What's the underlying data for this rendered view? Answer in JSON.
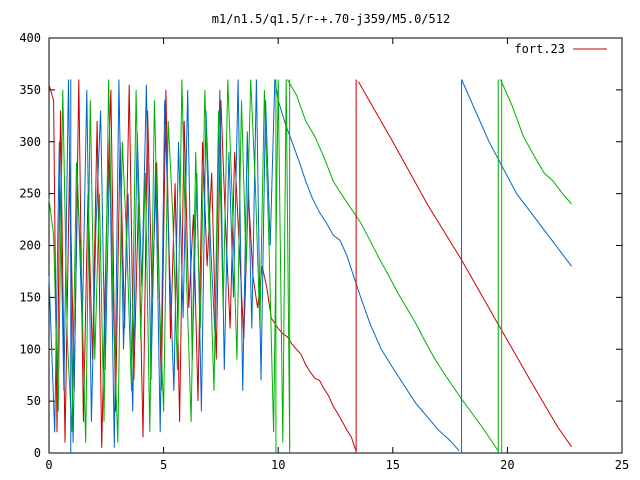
{
  "chart_data": {
    "type": "line",
    "title": "m1/n1.5/q1.5/r-+.70-j359/M5.0/512",
    "xlabel": "",
    "ylabel": "",
    "xlim": [
      0,
      25
    ],
    "ylim": [
      0,
      400
    ],
    "xticks": [
      0,
      5,
      10,
      15,
      20,
      25
    ],
    "yticks": [
      0,
      50,
      100,
      150,
      200,
      250,
      300,
      350,
      400
    ],
    "grid": false,
    "legend_position": "top-right",
    "legend": [
      {
        "label": "fort.23",
        "color": "#cc0000"
      }
    ],
    "series": [
      {
        "color": "#cc0000",
        "segments": [
          [
            [
              0,
              355
            ],
            [
              0.2,
              340
            ],
            [
              0.35,
              20
            ],
            [
              0.5,
              330
            ],
            [
              0.7,
              10
            ],
            [
              0.9,
              280
            ],
            [
              1.1,
              60
            ],
            [
              1.3,
              360
            ],
            [
              1.5,
              30
            ],
            [
              1.7,
              250
            ],
            [
              1.9,
              90
            ],
            [
              2.1,
              320
            ],
            [
              2.3,
              5
            ],
            [
              2.5,
              210
            ],
            [
              2.7,
              350
            ],
            [
              2.9,
              40
            ],
            [
              3.1,
              300
            ],
            [
              3.3,
              120
            ],
            [
              3.5,
              355
            ],
            [
              3.7,
              70
            ],
            [
              3.9,
              240
            ],
            [
              4.1,
              15
            ],
            [
              4.3,
              330
            ],
            [
              4.5,
              150
            ],
            [
              4.7,
              280
            ],
            [
              4.9,
              60
            ],
            [
              5.1,
              350
            ],
            [
              5.3,
              110
            ],
            [
              5.5,
              260
            ],
            [
              5.7,
              30
            ],
            [
              5.9,
              320
            ],
            [
              6.1,
              140
            ],
            [
              6.3,
              230
            ],
            [
              6.5,
              50
            ],
            [
              6.7,
              300
            ],
            [
              6.9,
              180
            ],
            [
              7.1,
              270
            ],
            [
              7.3,
              90
            ],
            [
              7.5,
              340
            ],
            [
              7.7,
              220
            ],
            [
              7.9,
              120
            ],
            [
              8.1,
              290
            ],
            [
              8.3,
              200
            ],
            [
              8.5,
              110
            ],
            [
              8.7,
              250
            ],
            [
              8.9,
              170
            ],
            [
              9.1,
              140
            ],
            [
              9.3,
              180
            ],
            [
              9.5,
              160
            ],
            [
              9.7,
              130
            ]
          ],
          [
            [
              9.7,
              130
            ],
            [
              10.0,
              120
            ],
            [
              10.2,
              115
            ],
            [
              10.4,
              112
            ],
            [
              10.6,
              105
            ],
            [
              10.8,
              100
            ],
            [
              11.0,
              95
            ],
            [
              11.2,
              85
            ],
            [
              11.4,
              78
            ],
            [
              11.6,
              72
            ],
            [
              11.8,
              70
            ],
            [
              12.0,
              62
            ],
            [
              12.2,
              55
            ],
            [
              12.4,
              45
            ],
            [
              12.6,
              38
            ],
            [
              12.8,
              30
            ],
            [
              13.0,
              22
            ],
            [
              13.2,
              15
            ],
            [
              13.3,
              8
            ],
            [
              13.4,
              2
            ]
          ],
          [
            [
              13.5,
              358
            ],
            [
              15.0,
              300
            ],
            [
              16.5,
              240
            ],
            [
              18.0,
              186
            ],
            [
              19.5,
              128
            ],
            [
              21.0,
              70
            ],
            [
              22.2,
              25
            ],
            [
              22.8,
              6
            ]
          ]
        ]
      },
      {
        "color": "#0066cc",
        "segments": [
          [
            [
              0,
              170
            ],
            [
              0.25,
              20
            ],
            [
              0.45,
              300
            ],
            [
              0.65,
              60
            ],
            [
              0.85,
              360
            ],
            [
              1.05,
              10
            ],
            [
              1.25,
              260
            ],
            [
              1.45,
              120
            ],
            [
              1.65,
              350
            ],
            [
              1.85,
              30
            ],
            [
              2.05,
              220
            ],
            [
              2.25,
              330
            ],
            [
              2.45,
              80
            ],
            [
              2.65,
              290
            ],
            [
              2.85,
              5
            ],
            [
              3.05,
              360
            ],
            [
              3.25,
              100
            ],
            [
              3.45,
              250
            ],
            [
              3.65,
              40
            ],
            [
              3.85,
              310
            ],
            [
              4.05,
              160
            ],
            [
              4.25,
              355
            ],
            [
              4.45,
              70
            ],
            [
              4.65,
              280
            ],
            [
              4.85,
              20
            ],
            [
              5.05,
              340
            ],
            [
              5.25,
              190
            ],
            [
              5.45,
              60
            ],
            [
              5.65,
              300
            ],
            [
              5.85,
              130
            ],
            [
              6.05,
              350
            ],
            [
              6.25,
              90
            ],
            [
              6.45,
              270
            ],
            [
              6.65,
              40
            ],
            [
              6.85,
              330
            ],
            [
              7.05,
              200
            ],
            [
              7.25,
              110
            ],
            [
              7.45,
              350
            ],
            [
              7.65,
              80
            ],
            [
              7.85,
              290
            ],
            [
              8.05,
              150
            ],
            [
              8.25,
              360
            ],
            [
              8.45,
              60
            ],
            [
              8.65,
              310
            ],
            [
              8.85,
              120
            ],
            [
              9.05,
              360
            ],
            [
              9.25,
              70
            ],
            [
              9.45,
              340
            ],
            [
              9.65,
              200
            ],
            [
              9.85,
              360
            ]
          ],
          [
            [
              9.85,
              360
            ],
            [
              10.0,
              340
            ],
            [
              10.3,
              318
            ],
            [
              10.6,
              300
            ],
            [
              10.9,
              282
            ],
            [
              11.2,
              262
            ],
            [
              11.5,
              245
            ],
            [
              11.8,
              232
            ],
            [
              12.1,
              222
            ],
            [
              12.4,
              210
            ],
            [
              12.7,
              205
            ],
            [
              13.0,
              190
            ],
            [
              13.3,
              170
            ],
            [
              13.6,
              150
            ],
            [
              14.0,
              125
            ],
            [
              14.5,
              100
            ],
            [
              15.0,
              82
            ],
            [
              15.5,
              65
            ],
            [
              16.0,
              48
            ],
            [
              16.5,
              35
            ],
            [
              17.0,
              22
            ],
            [
              17.5,
              12
            ],
            [
              17.9,
              2
            ]
          ],
          [
            [
              18.0,
              360
            ],
            [
              19.2,
              300
            ],
            [
              20.4,
              250
            ],
            [
              21.6,
              215
            ],
            [
              22.8,
              180
            ]
          ]
        ]
      },
      {
        "color": "#00b000",
        "segments": [
          [
            [
              0,
              245
            ],
            [
              0.2,
              210
            ],
            [
              0.4,
              40
            ],
            [
              0.6,
              350
            ],
            [
              0.8,
              110
            ],
            [
              1.0,
              20
            ],
            [
              1.2,
              280
            ],
            [
              1.4,
              180
            ],
            [
              1.6,
              10
            ],
            [
              1.8,
              340
            ],
            [
              2.0,
              90
            ],
            [
              2.2,
              250
            ],
            [
              2.4,
              30
            ],
            [
              2.6,
              360
            ],
            [
              2.8,
              140
            ],
            [
              3.0,
              10
            ],
            [
              3.2,
              300
            ],
            [
              3.4,
              200
            ],
            [
              3.6,
              60
            ],
            [
              3.8,
              350
            ],
            [
              4.0,
              110
            ],
            [
              4.2,
              270
            ],
            [
              4.4,
              20
            ],
            [
              4.6,
              340
            ],
            [
              4.8,
              160
            ],
            [
              5.0,
              40
            ],
            [
              5.2,
              320
            ],
            [
              5.4,
              230
            ],
            [
              5.6,
              80
            ],
            [
              5.8,
              360
            ],
            [
              6.0,
              170
            ],
            [
              6.2,
              30
            ],
            [
              6.4,
              290
            ],
            [
              6.6,
              120
            ],
            [
              6.8,
              350
            ],
            [
              7.0,
              200
            ],
            [
              7.2,
              60
            ],
            [
              7.4,
              330
            ],
            [
              7.6,
              140
            ],
            [
              7.8,
              360
            ],
            [
              8.0,
              240
            ],
            [
              8.2,
              90
            ],
            [
              8.4,
              340
            ],
            [
              8.6,
              180
            ],
            [
              8.8,
              360
            ],
            [
              9.0,
              260
            ],
            [
              9.2,
              120
            ],
            [
              9.4,
              350
            ],
            [
              9.6,
              200
            ],
            [
              9.8,
              20
            ],
            [
              10.0,
              360
            ],
            [
              10.2,
              10
            ],
            [
              10.35,
              360
            ],
            [
              10.5,
              5
            ]
          ],
          [
            [
              10.4,
              360
            ],
            [
              10.8,
              345
            ],
            [
              11.2,
              320
            ],
            [
              11.6,
              305
            ],
            [
              12.0,
              285
            ],
            [
              12.4,
              262
            ],
            [
              12.8,
              248
            ],
            [
              13.2,
              235
            ],
            [
              13.6,
              222
            ],
            [
              14.0,
              205
            ],
            [
              14.4,
              188
            ],
            [
              14.8,
              172
            ],
            [
              15.2,
              155
            ],
            [
              15.6,
              140
            ],
            [
              16.0,
              125
            ],
            [
              16.4,
              108
            ],
            [
              16.8,
              92
            ],
            [
              17.2,
              78
            ],
            [
              17.6,
              65
            ],
            [
              18.0,
              52
            ],
            [
              18.4,
              40
            ],
            [
              18.8,
              28
            ],
            [
              19.2,
              15
            ],
            [
              19.6,
              2
            ]
          ],
          [
            [
              19.7,
              360
            ],
            [
              20.2,
              335
            ],
            [
              20.7,
              305
            ],
            [
              21.2,
              285
            ],
            [
              21.6,
              270
            ],
            [
              22.0,
              262
            ],
            [
              22.4,
              250
            ],
            [
              22.8,
              240
            ]
          ]
        ]
      }
    ],
    "vertical_lines": [
      {
        "x": 0.95,
        "color": "#0066cc"
      },
      {
        "x": 13.4,
        "color": "#cc0000"
      },
      {
        "x": 18.0,
        "color": "#0066cc"
      },
      {
        "x": 19.6,
        "color": "#00b000"
      },
      {
        "x": 19.75,
        "color": "#00b000"
      },
      {
        "x": 9.9,
        "color": "#00b000"
      },
      {
        "x": 10.5,
        "color": "#00b000"
      }
    ]
  }
}
